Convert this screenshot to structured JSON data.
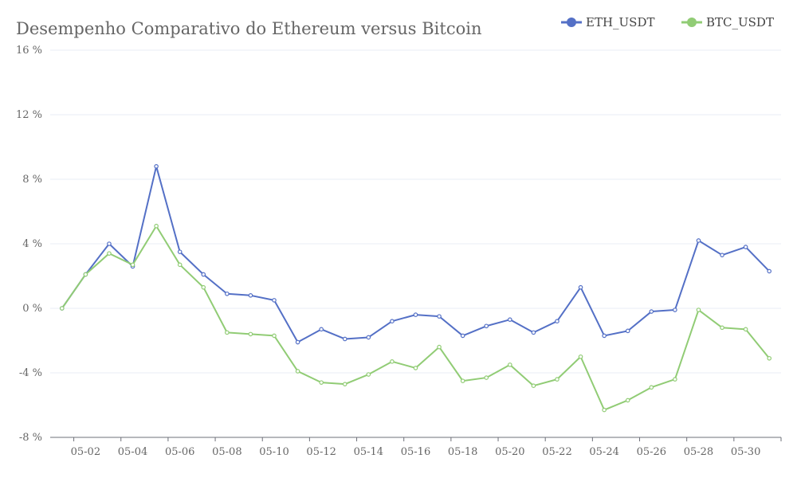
{
  "chart_data": {
    "type": "line",
    "title": "Desempenho Comparativo do Ethereum versus Bitcoin",
    "y_suffix": " %",
    "ylim": [
      -8,
      16
    ],
    "y_ticks": [
      -8,
      -4,
      0,
      4,
      8,
      12,
      16
    ],
    "x": [
      "05-01",
      "05-02",
      "05-03",
      "05-04",
      "05-05",
      "05-06",
      "05-07",
      "05-08",
      "05-09",
      "05-10",
      "05-11",
      "05-12",
      "05-13",
      "05-14",
      "05-15",
      "05-16",
      "05-17",
      "05-18",
      "05-19",
      "05-20",
      "05-21",
      "05-22",
      "05-23",
      "05-24",
      "05-25",
      "05-26",
      "05-27",
      "05-28",
      "05-29",
      "05-30",
      "05-31"
    ],
    "x_tick_labels": [
      "05-02",
      "05-04",
      "05-06",
      "05-08",
      "05-10",
      "05-12",
      "05-14",
      "05-16",
      "05-18",
      "05-20",
      "05-22",
      "05-24",
      "05-26",
      "05-28",
      "05-30"
    ],
    "series": [
      {
        "name": "ETH_USDT",
        "color": "#5470c6",
        "values": [
          0.0,
          2.1,
          4.0,
          2.6,
          8.8,
          3.5,
          2.1,
          0.9,
          0.8,
          0.5,
          -2.1,
          -1.3,
          -1.9,
          -1.8,
          -0.8,
          -0.4,
          -0.5,
          -1.7,
          -1.1,
          -0.7,
          -1.5,
          -0.8,
          1.3,
          -1.7,
          -1.4,
          -0.2,
          -0.1,
          4.2,
          3.3,
          3.8,
          2.3
        ]
      },
      {
        "name": "BTC_USDT",
        "color": "#91cc75",
        "values": [
          0.0,
          2.1,
          3.4,
          2.7,
          5.1,
          2.7,
          1.3,
          -1.5,
          -1.6,
          -1.7,
          -3.9,
          -4.6,
          -4.7,
          -4.1,
          -3.3,
          -3.7,
          -2.4,
          -4.5,
          -4.3,
          -3.5,
          -4.8,
          -4.4,
          -3.0,
          -6.3,
          -5.7,
          -4.9,
          -4.4,
          -0.1,
          -1.2,
          -1.3,
          -3.1
        ]
      }
    ],
    "legend_position": "top-right",
    "grid": true
  }
}
